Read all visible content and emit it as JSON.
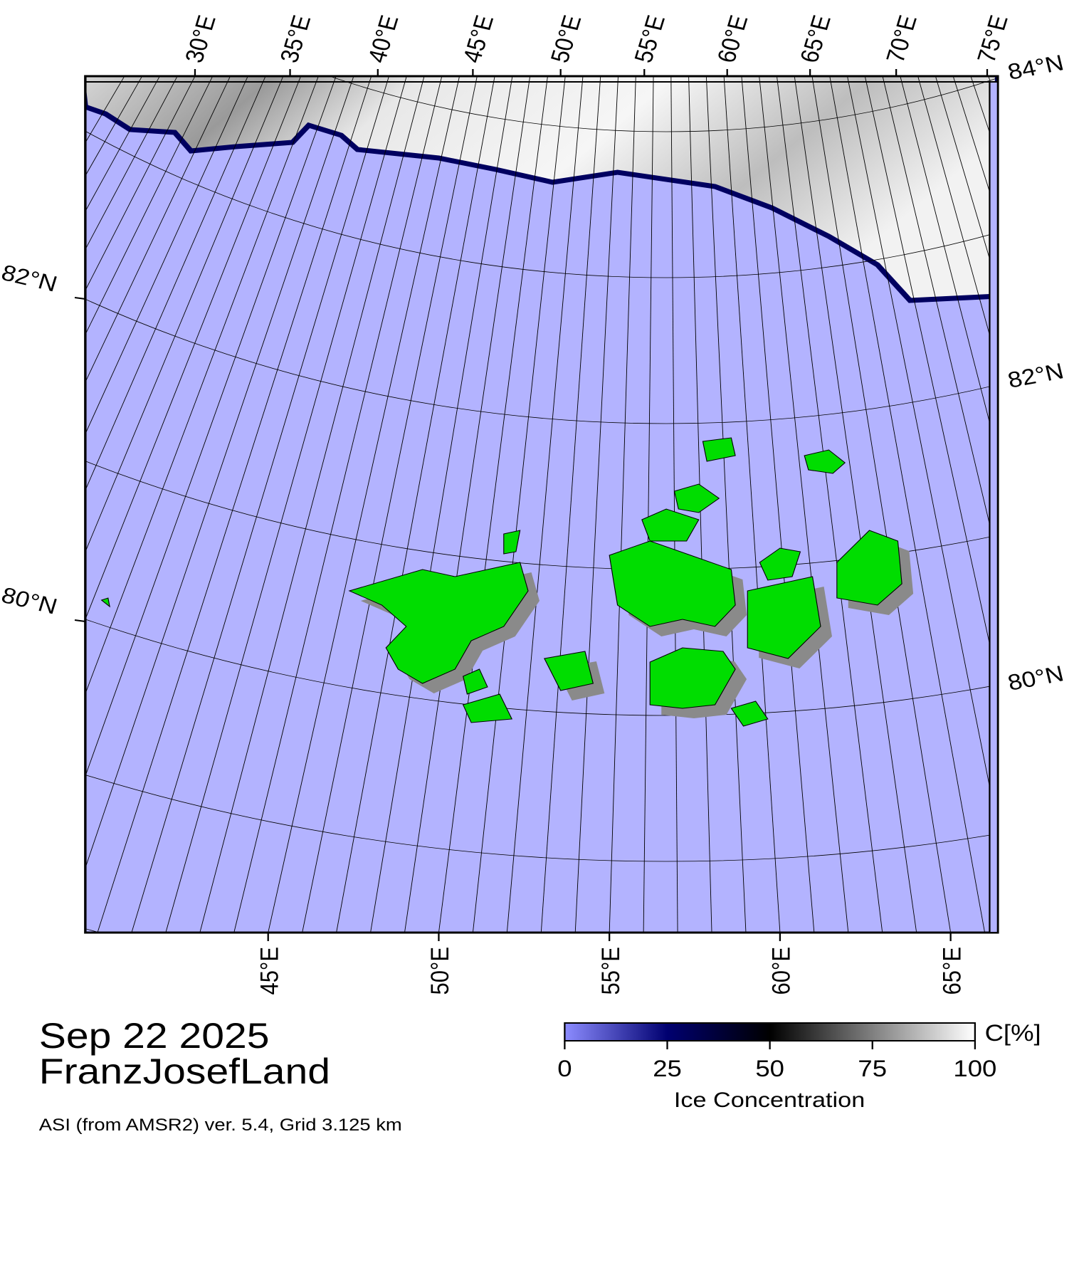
{
  "map": {
    "top_lon_labels": [
      "30°E",
      "35°E",
      "40°E",
      "45°E",
      "50°E",
      "55°E",
      "60°E",
      "65°E",
      "70°E",
      "75°E"
    ],
    "right_lat_labels": [
      "84°N",
      "82°N",
      "80°N"
    ],
    "left_lat_labels": [
      "82°N",
      "80°N"
    ],
    "bottom_lon_labels": [
      "45°E",
      "50°E",
      "55°E",
      "60°E",
      "65°E"
    ]
  },
  "date": "Sep 22 2025",
  "region": "FranzJosefLand",
  "source": "ASI (from AMSR2) ver. 5.4,  Grid 3.125 km",
  "colorbar": {
    "title": "Ice Concentration",
    "unit": "C[%]",
    "range": [
      0,
      100
    ],
    "ticks": [
      0,
      25,
      50,
      75,
      100
    ]
  }
}
